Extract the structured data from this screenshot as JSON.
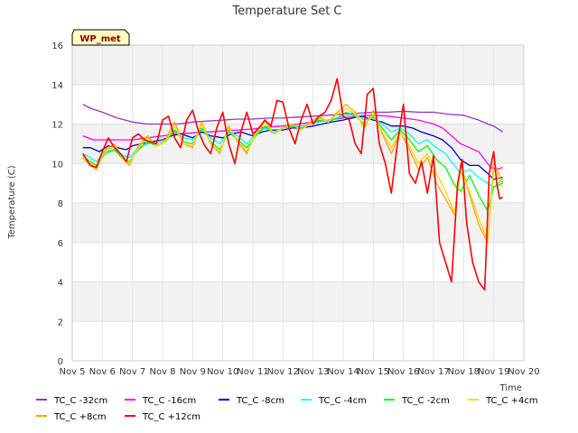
{
  "chart_data": {
    "type": "line",
    "title": "Temperature Set C",
    "xlabel": "Time",
    "ylabel": "Temperature (C)",
    "badge": "WP_met",
    "ylim": [
      0,
      16
    ],
    "yticks": [
      0,
      2,
      4,
      6,
      8,
      10,
      12,
      14,
      16
    ],
    "xlim": [
      5,
      20
    ],
    "xticks": [
      5,
      6,
      7,
      8,
      9,
      10,
      11,
      12,
      13,
      14,
      15,
      16,
      17,
      18,
      19,
      20
    ],
    "xtick_labels": [
      "Nov 5",
      "Nov 6",
      "Nov 7",
      "Nov 8",
      "Nov 9",
      "Nov 10",
      "Nov 11",
      "Nov 12",
      "Nov 13",
      "Nov 14",
      "Nov 15",
      "Nov 16",
      "Nov 17",
      "Nov 18",
      "Nov 19",
      "Nov 20"
    ],
    "grid": true,
    "legend_position": "bottom",
    "series": [
      {
        "name": "TC_C -32cm",
        "color": "#9932cc",
        "x": [
          5.35,
          5.6,
          6.0,
          6.5,
          7.0,
          7.5,
          8.0,
          8.5,
          9.0,
          9.5,
          10.0,
          10.5,
          11.0,
          11.5,
          12.0,
          12.5,
          13.0,
          13.5,
          14.0,
          14.5,
          15.0,
          15.5,
          16.0,
          16.5,
          17.0,
          17.5,
          18.0,
          18.5,
          18.8,
          19.0,
          19.3
        ],
        "y": [
          13.0,
          12.8,
          12.6,
          12.3,
          12.1,
          12.0,
          12.0,
          12.0,
          12.1,
          12.15,
          12.2,
          12.25,
          12.25,
          12.3,
          12.3,
          12.35,
          12.4,
          12.45,
          12.5,
          12.55,
          12.6,
          12.6,
          12.65,
          12.6,
          12.6,
          12.5,
          12.45,
          12.2,
          12.0,
          11.9,
          11.6
        ]
      },
      {
        "name": "TC_C -16cm",
        "color": "#ff00ff",
        "x": [
          5.35,
          5.7,
          6.0,
          6.5,
          7.0,
          7.5,
          8.0,
          8.5,
          9.0,
          9.5,
          10.0,
          10.5,
          11.0,
          11.5,
          12.0,
          12.5,
          13.0,
          13.5,
          14.0,
          14.5,
          15.0,
          15.5,
          16.0,
          16.5,
          17.0,
          17.3,
          17.6,
          17.9,
          18.2,
          18.5,
          18.7,
          18.9,
          19.1,
          19.3
        ],
        "y": [
          11.4,
          11.2,
          11.2,
          11.2,
          11.2,
          11.3,
          11.4,
          11.5,
          11.55,
          11.6,
          11.65,
          11.7,
          11.75,
          11.85,
          11.9,
          12.0,
          12.1,
          12.2,
          12.3,
          12.4,
          12.45,
          12.4,
          12.3,
          12.2,
          12.0,
          11.8,
          11.4,
          11.0,
          10.8,
          10.6,
          10.2,
          9.8,
          9.7,
          9.8
        ]
      },
      {
        "name": "TC_C -8cm",
        "color": "#0000cd",
        "x": [
          5.35,
          5.6,
          5.9,
          6.2,
          6.5,
          6.8,
          7.0,
          7.3,
          7.6,
          8.0,
          8.3,
          8.6,
          9.0,
          9.3,
          9.6,
          10.0,
          10.3,
          10.6,
          11.0,
          11.3,
          11.6,
          12.0,
          12.3,
          12.6,
          13.0,
          13.3,
          13.6,
          14.0,
          14.3,
          14.6,
          15.0,
          15.3,
          15.6,
          16.0,
          16.3,
          16.6,
          17.0,
          17.3,
          17.6,
          17.9,
          18.2,
          18.5,
          18.8,
          19.0,
          19.3
        ],
        "y": [
          10.8,
          10.8,
          10.6,
          10.9,
          10.8,
          10.7,
          10.9,
          11.0,
          11.1,
          11.2,
          11.4,
          11.5,
          11.3,
          11.6,
          11.4,
          11.3,
          11.5,
          11.6,
          11.4,
          11.6,
          11.7,
          11.7,
          11.8,
          11.8,
          11.9,
          12.0,
          12.1,
          12.2,
          12.3,
          12.4,
          12.2,
          12.1,
          11.9,
          11.9,
          11.8,
          11.6,
          11.4,
          11.2,
          10.8,
          10.2,
          9.9,
          9.9,
          9.5,
          9.2,
          9.3
        ]
      },
      {
        "name": "TC_C -4cm",
        "color": "#00ffff",
        "x": [
          5.35,
          5.6,
          5.8,
          6.1,
          6.4,
          6.7,
          6.9,
          7.2,
          7.5,
          7.8,
          8.1,
          8.4,
          8.7,
          9.0,
          9.3,
          9.6,
          9.9,
          10.2,
          10.5,
          10.8,
          11.1,
          11.4,
          11.7,
          12.0,
          12.3,
          12.6,
          12.9,
          13.2,
          13.5,
          13.8,
          14.1,
          14.4,
          14.7,
          15.0,
          15.3,
          15.6,
          15.9,
          16.2,
          16.5,
          16.8,
          17.1,
          17.4,
          17.7,
          17.9,
          18.2,
          18.5,
          18.8,
          19.0,
          19.3
        ],
        "y": [
          10.5,
          10.3,
          10.1,
          10.6,
          10.7,
          10.4,
          10.3,
          10.8,
          11.0,
          11.1,
          11.2,
          11.6,
          11.3,
          11.2,
          11.7,
          11.3,
          11.0,
          11.6,
          11.4,
          11.0,
          11.5,
          11.8,
          11.6,
          11.8,
          11.9,
          11.9,
          12.0,
          12.1,
          12.2,
          12.3,
          12.4,
          12.5,
          12.2,
          12.3,
          12.0,
          11.6,
          11.8,
          11.5,
          11.0,
          11.2,
          10.8,
          10.5,
          9.9,
          9.5,
          9.7,
          9.3,
          9.0,
          8.8,
          9.2
        ]
      },
      {
        "name": "TC_C -2cm",
        "color": "#00ff00",
        "x": [
          5.35,
          5.6,
          5.8,
          6.1,
          6.4,
          6.7,
          6.9,
          7.2,
          7.5,
          7.8,
          8.1,
          8.4,
          8.7,
          9.0,
          9.3,
          9.6,
          9.9,
          10.2,
          10.5,
          10.8,
          11.1,
          11.4,
          11.7,
          12.0,
          12.3,
          12.6,
          12.9,
          13.2,
          13.5,
          13.8,
          14.1,
          14.4,
          14.7,
          15.0,
          15.3,
          15.6,
          15.9,
          16.2,
          16.5,
          16.8,
          17.1,
          17.4,
          17.7,
          17.9,
          18.2,
          18.5,
          18.8,
          19.0,
          19.3
        ],
        "y": [
          10.4,
          10.1,
          9.9,
          10.5,
          10.7,
          10.2,
          10.1,
          10.7,
          11.1,
          10.9,
          11.1,
          11.7,
          11.1,
          11.0,
          11.8,
          11.1,
          10.7,
          11.6,
          11.2,
          10.8,
          11.4,
          11.9,
          11.5,
          11.8,
          11.9,
          11.8,
          12.0,
          12.2,
          12.1,
          12.3,
          12.6,
          12.4,
          12.0,
          12.4,
          11.8,
          11.2,
          11.7,
          11.2,
          10.6,
          10.9,
          10.2,
          9.8,
          8.9,
          8.6,
          9.4,
          8.4,
          7.6,
          8.8,
          9.0
        ]
      },
      {
        "name": "TC_C +4cm",
        "color": "#ffd700",
        "x": [
          5.35,
          5.6,
          5.8,
          6.1,
          6.4,
          6.7,
          6.9,
          7.2,
          7.5,
          7.8,
          8.1,
          8.4,
          8.7,
          9.0,
          9.3,
          9.6,
          9.9,
          10.2,
          10.5,
          10.8,
          11.1,
          11.4,
          11.7,
          12.0,
          12.3,
          12.6,
          12.9,
          13.2,
          13.5,
          13.8,
          14.1,
          14.4,
          14.7,
          15.0,
          15.3,
          15.6,
          15.9,
          16.2,
          16.5,
          16.8,
          17.1,
          17.4,
          17.7,
          17.9,
          18.2,
          18.5,
          18.8,
          19.0,
          19.3
        ],
        "y": [
          10.3,
          10.0,
          9.8,
          10.6,
          10.9,
          10.2,
          10.0,
          10.8,
          11.3,
          10.9,
          11.1,
          11.9,
          11.0,
          10.9,
          12.0,
          11.0,
          10.6,
          11.8,
          11.2,
          10.6,
          11.5,
          12.1,
          11.5,
          11.8,
          12.0,
          11.7,
          12.0,
          12.3,
          12.1,
          12.5,
          12.8,
          12.5,
          11.9,
          12.5,
          11.6,
          10.8,
          11.6,
          10.9,
          10.0,
          10.5,
          9.5,
          8.6,
          7.5,
          9.6,
          8.6,
          7.2,
          6.1,
          9.7,
          8.8
        ]
      },
      {
        "name": "TC_C +8cm",
        "color": "#ffa500",
        "x": [
          5.35,
          5.6,
          5.8,
          6.1,
          6.4,
          6.7,
          6.9,
          7.2,
          7.5,
          7.8,
          8.1,
          8.4,
          8.7,
          9.0,
          9.3,
          9.6,
          9.9,
          10.2,
          10.5,
          10.8,
          11.1,
          11.4,
          11.7,
          12.0,
          12.3,
          12.6,
          12.9,
          13.2,
          13.5,
          13.8,
          14.1,
          14.4,
          14.7,
          15.0,
          15.3,
          15.6,
          15.9,
          16.2,
          16.5,
          16.8,
          17.1,
          17.4,
          17.7,
          17.9,
          18.2,
          18.5,
          18.8,
          19.0,
          19.3
        ],
        "y": [
          10.3,
          9.9,
          9.7,
          10.7,
          11.0,
          10.2,
          9.9,
          10.9,
          11.4,
          10.9,
          11.2,
          12.1,
          11.0,
          10.8,
          12.1,
          11.0,
          10.5,
          11.9,
          11.1,
          10.5,
          11.6,
          12.2,
          11.5,
          11.8,
          12.0,
          11.7,
          12.1,
          12.4,
          12.1,
          12.6,
          13.0,
          12.6,
          11.8,
          12.7,
          11.5,
          10.5,
          11.6,
          10.7,
          9.7,
          10.3,
          9.0,
          8.2,
          7.4,
          10.0,
          8.4,
          6.9,
          6.0,
          10.1,
          9.0
        ]
      },
      {
        "name": "TC_C +12cm",
        "color": "#ff0000",
        "x": [
          5.35,
          5.6,
          5.8,
          6.0,
          6.2,
          6.4,
          6.6,
          6.8,
          7.0,
          7.2,
          7.4,
          7.6,
          7.8,
          8.0,
          8.2,
          8.4,
          8.6,
          8.8,
          9.0,
          9.2,
          9.4,
          9.6,
          9.8,
          10.0,
          10.2,
          10.4,
          10.6,
          10.8,
          11.0,
          11.2,
          11.4,
          11.6,
          11.8,
          12.0,
          12.2,
          12.4,
          12.6,
          12.8,
          13.0,
          13.2,
          13.4,
          13.6,
          13.8,
          14.0,
          14.2,
          14.4,
          14.6,
          14.8,
          15.0,
          15.2,
          15.4,
          15.6,
          15.8,
          16.0,
          16.2,
          16.4,
          16.6,
          16.8,
          17.0,
          17.2,
          17.4,
          17.6,
          17.8,
          17.95,
          18.1,
          18.3,
          18.5,
          18.7,
          18.85,
          19.0,
          19.1,
          19.2,
          19.3
        ],
        "y": [
          10.5,
          9.9,
          9.8,
          10.6,
          11.3,
          10.8,
          10.5,
          10.1,
          11.3,
          11.5,
          11.2,
          11.1,
          11.0,
          12.2,
          12.4,
          11.3,
          10.8,
          12.2,
          12.7,
          11.6,
          10.9,
          10.5,
          11.8,
          12.6,
          11.0,
          10.0,
          11.6,
          12.6,
          11.5,
          11.8,
          12.2,
          11.9,
          13.2,
          13.1,
          11.8,
          11.0,
          12.2,
          13.0,
          12.0,
          12.4,
          12.6,
          13.2,
          14.3,
          12.4,
          12.2,
          11.0,
          10.5,
          13.5,
          13.8,
          11.0,
          10.0,
          8.5,
          11.0,
          13.0,
          9.5,
          9.0,
          10.1,
          8.5,
          10.4,
          6.0,
          5.0,
          4.0,
          9.0,
          10.2,
          7.0,
          5.0,
          4.0,
          3.6,
          9.5,
          10.6,
          9.0,
          8.2,
          8.3
        ]
      }
    ]
  }
}
